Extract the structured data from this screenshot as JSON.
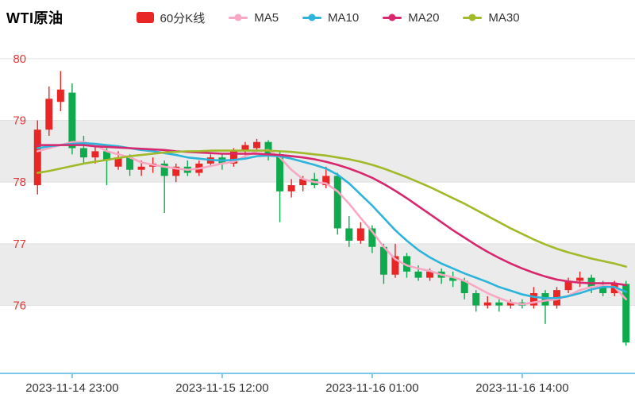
{
  "title": "WTI原油",
  "legend": {
    "kline": {
      "label": "60分K线",
      "color": "#e82626"
    },
    "ma_items": [
      {
        "label": "MA5",
        "color": "#f8a8c3"
      },
      {
        "label": "MA10",
        "color": "#2eb4da"
      },
      {
        "label": "MA20",
        "color": "#d7276d"
      },
      {
        "label": "MA30",
        "color": "#a0ba29"
      }
    ]
  },
  "chart_data": {
    "type": "candlestick",
    "title": "WTI原油",
    "interval": "60分K线",
    "ylim": [
      74.9,
      80.05
    ],
    "y_ticks": [
      76,
      77,
      78,
      79,
      80
    ],
    "bands": [
      [
        78,
        79
      ],
      [
        76,
        77
      ]
    ],
    "x_tick_labels": [
      "2023-11-14 23:00",
      "2023-11-15 12:00",
      "2023-11-16 01:00",
      "2023-11-16 14:00"
    ],
    "x_tick_indices": [
      3,
      16,
      29,
      42
    ],
    "candles": [
      [
        77.95,
        79.0,
        77.8,
        78.85
      ],
      [
        78.85,
        79.55,
        78.75,
        79.35
      ],
      [
        79.3,
        79.8,
        79.15,
        79.5
      ],
      [
        79.45,
        79.6,
        78.45,
        78.55
      ],
      [
        78.55,
        78.75,
        78.3,
        78.4
      ],
      [
        78.4,
        78.6,
        78.3,
        78.5
      ],
      [
        78.5,
        78.55,
        77.95,
        78.35
      ],
      [
        78.25,
        78.5,
        78.2,
        78.4
      ],
      [
        78.4,
        78.45,
        78.1,
        78.2
      ],
      [
        78.2,
        78.35,
        78.1,
        78.25
      ],
      [
        78.25,
        78.4,
        78.15,
        78.3
      ],
      [
        78.3,
        78.35,
        77.5,
        78.1
      ],
      [
        78.1,
        78.3,
        78.0,
        78.25
      ],
      [
        78.25,
        78.35,
        78.1,
        78.15
      ],
      [
        78.15,
        78.35,
        78.1,
        78.3
      ],
      [
        78.3,
        78.45,
        78.25,
        78.4
      ],
      [
        78.4,
        78.45,
        78.2,
        78.3
      ],
      [
        78.3,
        78.55,
        78.25,
        78.5
      ],
      [
        78.5,
        78.65,
        78.4,
        78.6
      ],
      [
        78.55,
        78.7,
        78.5,
        78.65
      ],
      [
        78.65,
        78.68,
        78.35,
        78.45
      ],
      [
        78.45,
        78.5,
        77.35,
        77.85
      ],
      [
        77.85,
        78.05,
        77.75,
        77.95
      ],
      [
        77.95,
        78.1,
        77.85,
        78.05
      ],
      [
        78.05,
        78.15,
        77.9,
        77.95
      ],
      [
        77.95,
        78.25,
        77.9,
        78.1
      ],
      [
        78.1,
        78.15,
        77.15,
        77.25
      ],
      [
        77.25,
        77.45,
        76.95,
        77.05
      ],
      [
        77.05,
        77.35,
        77.0,
        77.25
      ],
      [
        77.25,
        77.3,
        76.85,
        76.95
      ],
      [
        76.95,
        77.0,
        76.35,
        76.5
      ],
      [
        76.5,
        77.0,
        76.45,
        76.8
      ],
      [
        76.8,
        76.85,
        76.45,
        76.55
      ],
      [
        76.55,
        76.65,
        76.4,
        76.45
      ],
      [
        76.45,
        76.6,
        76.4,
        76.55
      ],
      [
        76.55,
        76.6,
        76.35,
        76.45
      ],
      [
        76.45,
        76.55,
        76.3,
        76.4
      ],
      [
        76.4,
        76.45,
        76.1,
        76.2
      ],
      [
        76.2,
        76.25,
        75.9,
        76.0
      ],
      [
        76.0,
        76.15,
        75.95,
        76.05
      ],
      [
        76.05,
        76.1,
        75.9,
        76.0
      ],
      [
        76.0,
        76.1,
        75.95,
        76.05
      ],
      [
        76.05,
        76.1,
        75.95,
        76.0
      ],
      [
        76.0,
        76.3,
        75.95,
        76.2
      ],
      [
        76.2,
        76.25,
        75.7,
        76.0
      ],
      [
        76.0,
        76.3,
        75.95,
        76.25
      ],
      [
        76.25,
        76.45,
        76.2,
        76.4
      ],
      [
        76.4,
        76.55,
        76.3,
        76.45
      ],
      [
        76.45,
        76.5,
        76.2,
        76.3
      ],
      [
        76.3,
        76.4,
        76.15,
        76.2
      ],
      [
        76.2,
        76.4,
        76.15,
        76.35
      ],
      [
        76.35,
        76.4,
        75.35,
        75.4
      ]
    ],
    "series": [
      {
        "name": "MA5",
        "color": "#f8a8c3",
        "values": [
          78.5,
          78.55,
          78.6,
          78.65,
          78.65,
          78.6,
          78.5,
          78.45,
          78.4,
          78.32,
          78.28,
          78.25,
          78.22,
          78.2,
          78.22,
          78.26,
          78.3,
          78.33,
          78.42,
          78.5,
          78.52,
          78.4,
          78.2,
          78.05,
          78.0,
          77.98,
          77.85,
          77.65,
          77.42,
          77.2,
          76.95,
          76.75,
          76.65,
          76.6,
          76.56,
          76.5,
          76.46,
          76.4,
          76.3,
          76.2,
          76.12,
          76.05,
          76.02,
          76.05,
          76.08,
          76.1,
          76.16,
          76.25,
          76.3,
          76.32,
          76.3,
          76.1
        ]
      },
      {
        "name": "MA10",
        "color": "#2eb4da",
        "values": [
          78.55,
          78.58,
          78.6,
          78.62,
          78.63,
          78.62,
          78.6,
          78.58,
          78.55,
          78.52,
          78.5,
          78.47,
          78.44,
          78.4,
          78.38,
          78.36,
          78.35,
          78.36,
          78.38,
          78.42,
          78.43,
          78.42,
          78.38,
          78.33,
          78.28,
          78.22,
          78.12,
          77.98,
          77.8,
          77.62,
          77.42,
          77.22,
          77.05,
          76.9,
          76.78,
          76.68,
          76.6,
          76.52,
          76.45,
          76.38,
          76.3,
          76.24,
          76.18,
          76.14,
          76.12,
          76.12,
          76.15,
          76.2,
          76.26,
          76.3,
          76.3,
          76.22
        ]
      },
      {
        "name": "MA20",
        "color": "#d7276d",
        "values": [
          78.6,
          78.6,
          78.6,
          78.6,
          78.6,
          78.58,
          78.57,
          78.56,
          78.55,
          78.54,
          78.53,
          78.52,
          78.5,
          78.49,
          78.48,
          78.47,
          78.46,
          78.46,
          78.46,
          78.46,
          78.45,
          78.44,
          78.42,
          78.4,
          78.37,
          78.33,
          78.28,
          78.22,
          78.15,
          78.07,
          77.97,
          77.86,
          77.74,
          77.61,
          77.48,
          77.35,
          77.22,
          77.1,
          76.98,
          76.87,
          76.77,
          76.68,
          76.6,
          76.53,
          76.47,
          76.42,
          76.39,
          76.37,
          76.36,
          76.36,
          76.36,
          76.33
        ]
      },
      {
        "name": "MA30",
        "color": "#a0ba29",
        "values": [
          78.15,
          78.18,
          78.22,
          78.26,
          78.3,
          78.33,
          78.36,
          78.39,
          78.42,
          78.44,
          78.46,
          78.48,
          78.49,
          78.5,
          78.5,
          78.51,
          78.51,
          78.51,
          78.51,
          78.51,
          78.51,
          78.5,
          78.49,
          78.47,
          78.45,
          78.43,
          78.4,
          78.37,
          78.33,
          78.28,
          78.22,
          78.15,
          78.08,
          78.0,
          77.92,
          77.83,
          77.74,
          77.65,
          77.55,
          77.45,
          77.35,
          77.25,
          77.16,
          77.07,
          76.99,
          76.92,
          76.86,
          76.81,
          76.76,
          76.72,
          76.68,
          76.63
        ]
      }
    ],
    "colors": {
      "up": "#e82626",
      "down": "#0fa94e",
      "band": "#ebebeb",
      "grid": "#e2e2e2",
      "axis": "#7cc8ed",
      "y_label": "#e13a3a",
      "x_label": "#333333"
    }
  }
}
